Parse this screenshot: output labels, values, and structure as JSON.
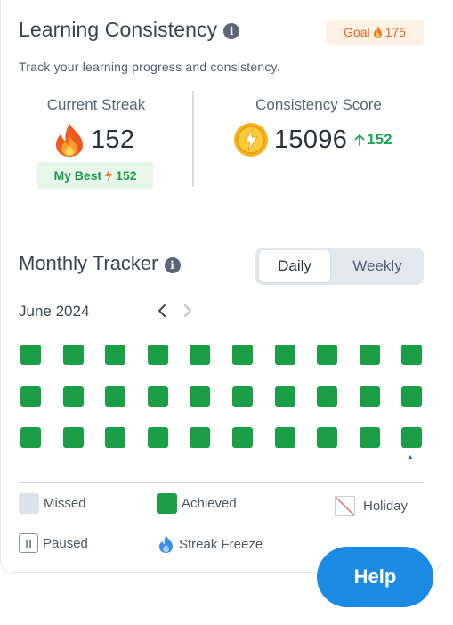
{
  "header": {
    "title": "Learning Consistency",
    "goal_label": "Goal",
    "goal_value": "175",
    "subtitle": "Track your learning progress and consistency."
  },
  "streak": {
    "label": "Current Streak",
    "value": "152",
    "best_label": "My Best",
    "best_value": "152"
  },
  "score": {
    "label": "Consistency Score",
    "value": "15096",
    "delta": "152"
  },
  "tracker": {
    "title": "Monthly Tracker",
    "tabs": {
      "daily": "Daily",
      "weekly": "Weekly"
    },
    "active_tab": "Daily",
    "month": "June 2024",
    "days": [
      "achieved",
      "achieved",
      "achieved",
      "achieved",
      "achieved",
      "achieved",
      "achieved",
      "achieved",
      "achieved",
      "achieved",
      "achieved",
      "achieved",
      "achieved",
      "achieved",
      "achieved",
      "achieved",
      "achieved",
      "achieved",
      "achieved",
      "achieved",
      "achieved",
      "achieved",
      "achieved",
      "achieved",
      "achieved",
      "achieved",
      "achieved",
      "achieved",
      "achieved",
      "achieved"
    ]
  },
  "legend": {
    "missed": "Missed",
    "achieved": "Achieved",
    "holiday": "Holiday",
    "paused": "Paused",
    "streak_freeze": "Streak Freeze"
  },
  "help_label": "Help",
  "colors": {
    "achieved": "#1a9e46",
    "missed": "#dde3ec",
    "accent": "#1a8ae5",
    "goal_text": "#e06a24",
    "best_text": "#1f9a4b"
  },
  "icons": [
    "info-icon",
    "flame-icon",
    "coin-bolt-icon",
    "arrow-up-icon",
    "chevron-left-icon",
    "chevron-right-icon",
    "holiday-icon",
    "pause-icon",
    "snowflame-icon"
  ]
}
